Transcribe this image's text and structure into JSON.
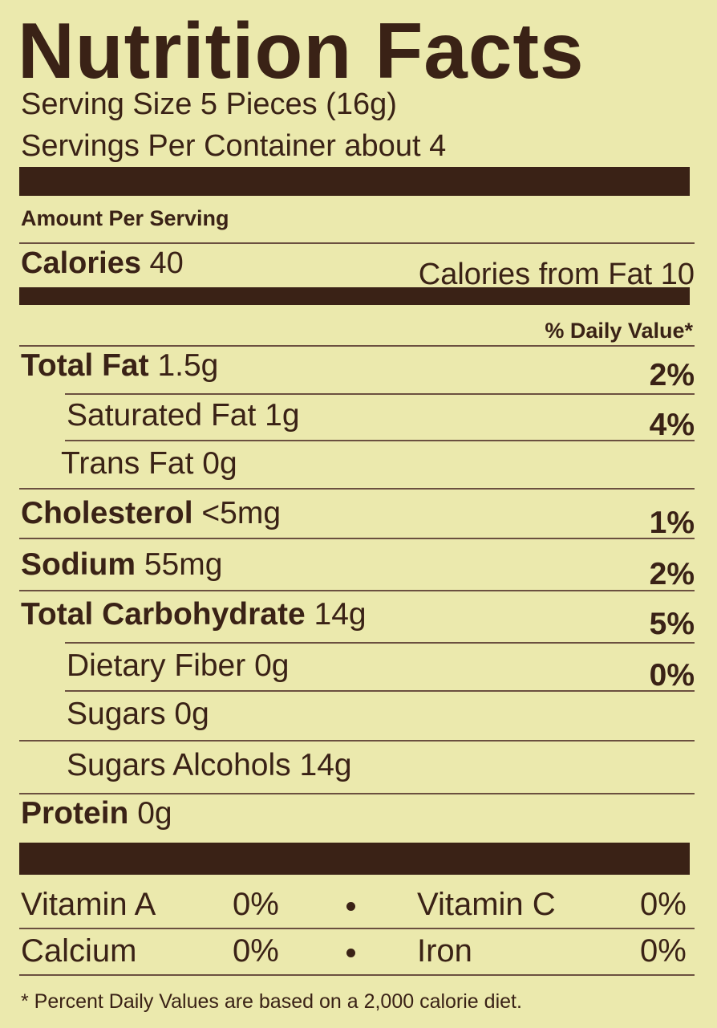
{
  "header": {
    "title": "Nutrition Facts",
    "serving_size": "Serving Size 5 Pieces (16g)",
    "servings_per_container": "Servings Per Container about 4"
  },
  "amount_per_serving": "Amount Per Serving",
  "calories": {
    "label": "Calories",
    "value": "40",
    "from_fat": "Calories from Fat 10"
  },
  "daily_value_header": "% Daily Value*",
  "rows": [
    {
      "name": "Total Fat",
      "amount": "1.5g",
      "dv": "2%"
    },
    {
      "name": "Saturated Fat",
      "amount": "1g",
      "dv": "4%"
    },
    {
      "name": "Trans Fat",
      "amount": "0g"
    },
    {
      "name": "Cholesterol",
      "amount": "<5mg",
      "dv": "1%"
    },
    {
      "name": "Sodium",
      "amount": "55mg",
      "dv": "2%"
    },
    {
      "name": "Total Carbohydrate",
      "amount": "14g",
      "dv": "5%"
    },
    {
      "name": "Dietary Fiber",
      "amount": "0g",
      "dv": "0%"
    },
    {
      "name": "Sugars",
      "amount": "0g"
    },
    {
      "name": "Sugars Alcohols",
      "amount": "14g"
    },
    {
      "name": "Protein",
      "amount": "0g"
    }
  ],
  "vitamins": [
    [
      {
        "name": "Vitamin A",
        "dv": "0%"
      },
      {
        "name": "Vitamin C",
        "dv": "0%"
      }
    ],
    [
      {
        "name": "Calcium",
        "dv": "0%"
      },
      {
        "name": "Iron",
        "dv": "0%"
      }
    ]
  ],
  "footnote": "* Percent Daily Values are based on a 2,000 calorie diet."
}
